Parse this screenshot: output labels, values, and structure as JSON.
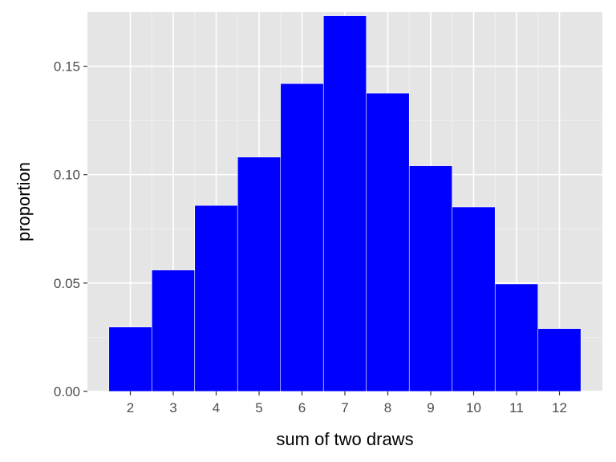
{
  "chart_data": {
    "type": "bar",
    "title": "",
    "xlabel": "sum of two draws",
    "ylabel": "proportion",
    "categories": [
      "2",
      "3",
      "4",
      "5",
      "6",
      "7",
      "8",
      "9",
      "10",
      "11",
      "12"
    ],
    "x": [
      2,
      3,
      4,
      5,
      6,
      7,
      8,
      9,
      10,
      11,
      12
    ],
    "values": [
      0.0297,
      0.056,
      0.0858,
      0.1081,
      0.142,
      0.1733,
      0.1376,
      0.1041,
      0.0851,
      0.0496,
      0.029
    ],
    "xlim": [
      1,
      13
    ],
    "ylim": [
      0,
      0.175
    ],
    "x_ticks": [
      "2",
      "3",
      "4",
      "5",
      "6",
      "7",
      "8",
      "9",
      "10",
      "11",
      "12"
    ],
    "y_ticks": [
      "0.00",
      "0.05",
      "0.10",
      "0.15"
    ],
    "y_tick_values": [
      0,
      0.05,
      0.1,
      0.15
    ],
    "grid": true,
    "colors": {
      "bar_fill": "#0000ff",
      "bar_outline": "#ffffff",
      "panel_background": "#e5e5e5",
      "grid_major": "#ffffff",
      "grid_minor": "#f2f2f2",
      "tick_mark": "#333333"
    }
  }
}
